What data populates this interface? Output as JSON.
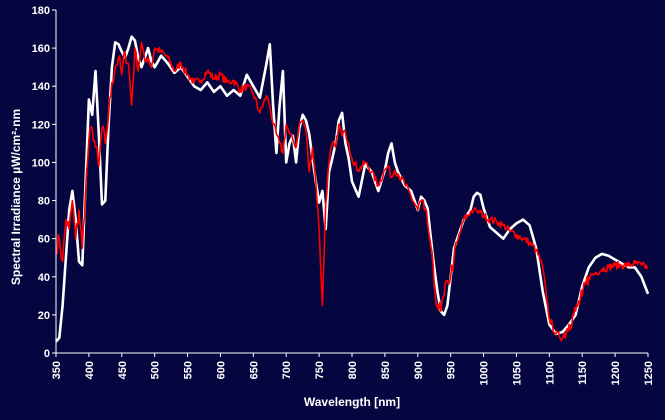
{
  "chart_data": {
    "type": "line",
    "title": "",
    "xlabel": "Wavelength [nm]",
    "ylabel": "Spectral Irradiance  µW/cm²·nm",
    "xlim": [
      350,
      1250
    ],
    "ylim": [
      0,
      180
    ],
    "x_ticks": [
      350,
      400,
      450,
      500,
      550,
      600,
      650,
      700,
      750,
      800,
      850,
      900,
      950,
      1000,
      1050,
      1100,
      1150,
      1200,
      1250
    ],
    "y_ticks": [
      0,
      20,
      40,
      60,
      80,
      100,
      120,
      140,
      160,
      180
    ],
    "grid": false,
    "legend": "none",
    "background": "#05053f",
    "series": [
      {
        "color": "#ffffff",
        "x": [
          350,
          355,
          360,
          365,
          370,
          375,
          380,
          385,
          390,
          395,
          400,
          405,
          410,
          415,
          420,
          425,
          430,
          435,
          440,
          445,
          450,
          455,
          460,
          465,
          470,
          475,
          480,
          485,
          490,
          495,
          500,
          510,
          520,
          530,
          540,
          550,
          560,
          570,
          580,
          590,
          600,
          610,
          620,
          630,
          640,
          650,
          660,
          670,
          675,
          680,
          685,
          690,
          695,
          700,
          705,
          710,
          715,
          720,
          725,
          730,
          735,
          740,
          745,
          750,
          755,
          760,
          765,
          770,
          775,
          780,
          785,
          790,
          795,
          800,
          810,
          820,
          830,
          840,
          850,
          855,
          860,
          865,
          870,
          880,
          890,
          900,
          905,
          910,
          915,
          920,
          925,
          930,
          935,
          940,
          945,
          950,
          955,
          960,
          970,
          980,
          985,
          990,
          995,
          1000,
          1010,
          1020,
          1030,
          1040,
          1050,
          1060,
          1070,
          1080,
          1090,
          1100,
          1110,
          1120,
          1130,
          1140,
          1150,
          1160,
          1170,
          1180,
          1190,
          1200,
          1210,
          1220,
          1230,
          1240,
          1250
        ],
        "y": [
          6,
          8,
          25,
          50,
          75,
          85,
          70,
          48,
          46,
          90,
          133,
          125,
          148,
          115,
          78,
          80,
          120,
          150,
          163,
          162,
          158,
          155,
          160,
          166,
          164,
          155,
          150,
          155,
          160,
          153,
          150,
          156,
          152,
          147,
          150,
          145,
          140,
          138,
          142,
          137,
          140,
          135,
          138,
          135,
          146,
          140,
          134,
          152,
          162,
          130,
          105,
          130,
          148,
          100,
          110,
          114,
          100,
          118,
          125,
          122,
          115,
          102,
          90,
          79,
          85,
          65,
          95,
          102,
          110,
          122,
          126,
          110,
          102,
          90,
          82,
          99,
          95,
          85,
          96,
          105,
          110,
          100,
          95,
          88,
          85,
          75,
          82,
          80,
          76,
          60,
          45,
          32,
          22,
          20,
          25,
          40,
          55,
          60,
          70,
          75,
          82,
          84,
          83,
          76,
          66,
          63,
          60,
          65,
          68,
          70,
          67,
          55,
          32,
          15,
          10,
          11,
          15,
          20,
          35,
          45,
          50,
          52,
          51,
          49,
          47,
          45,
          45,
          40,
          31
        ]
      },
      {
        "color": "#ff0000",
        "x": [
          350,
          355,
          360,
          365,
          370,
          375,
          380,
          385,
          390,
          395,
          400,
          405,
          410,
          415,
          420,
          425,
          430,
          435,
          440,
          445,
          450,
          455,
          460,
          465,
          470,
          475,
          480,
          485,
          490,
          495,
          500,
          510,
          520,
          530,
          540,
          550,
          560,
          570,
          580,
          590,
          600,
          610,
          620,
          630,
          640,
          650,
          660,
          670,
          675,
          680,
          685,
          690,
          695,
          700,
          705,
          710,
          715,
          720,
          725,
          730,
          735,
          740,
          745,
          750,
          755,
          760,
          765,
          770,
          775,
          780,
          785,
          790,
          795,
          800,
          810,
          820,
          830,
          840,
          850,
          855,
          860,
          865,
          870,
          880,
          890,
          900,
          905,
          910,
          915,
          920,
          925,
          930,
          935,
          940,
          945,
          950,
          955,
          960,
          970,
          980,
          985,
          990,
          995,
          1000,
          1010,
          1020,
          1030,
          1040,
          1050,
          1060,
          1070,
          1080,
          1090,
          1100,
          1110,
          1120,
          1130,
          1140,
          1150,
          1160,
          1170,
          1180,
          1190,
          1200,
          1210,
          1220,
          1230,
          1240,
          1250
        ],
        "y": [
          55,
          60,
          48,
          70,
          65,
          80,
          60,
          75,
          55,
          85,
          112,
          118,
          108,
          98,
          118,
          110,
          125,
          142,
          150,
          155,
          146,
          158,
          152,
          130,
          160,
          148,
          163,
          153,
          155,
          150,
          160,
          158,
          155,
          148,
          152,
          146,
          142,
          143,
          148,
          144,
          146,
          142,
          143,
          138,
          140,
          136,
          126,
          135,
          130,
          120,
          115,
          110,
          105,
          120,
          115,
          112,
          108,
          120,
          122,
          117,
          95,
          108,
          90,
          65,
          25,
          78,
          100,
          110,
          108,
          120,
          114,
          116,
          110,
          102,
          96,
          100,
          95,
          88,
          96,
          98,
          92,
          96,
          94,
          89,
          82,
          75,
          80,
          75,
          68,
          56,
          35,
          25,
          22,
          30,
          38,
          40,
          50,
          58,
          70,
          74,
          75,
          74,
          74,
          72,
          70,
          69,
          67,
          64,
          62,
          60,
          58,
          54,
          45,
          18,
          10,
          8,
          15,
          22,
          30,
          40,
          42,
          44,
          45,
          46,
          46,
          46,
          47,
          46,
          45
        ]
      }
    ]
  }
}
